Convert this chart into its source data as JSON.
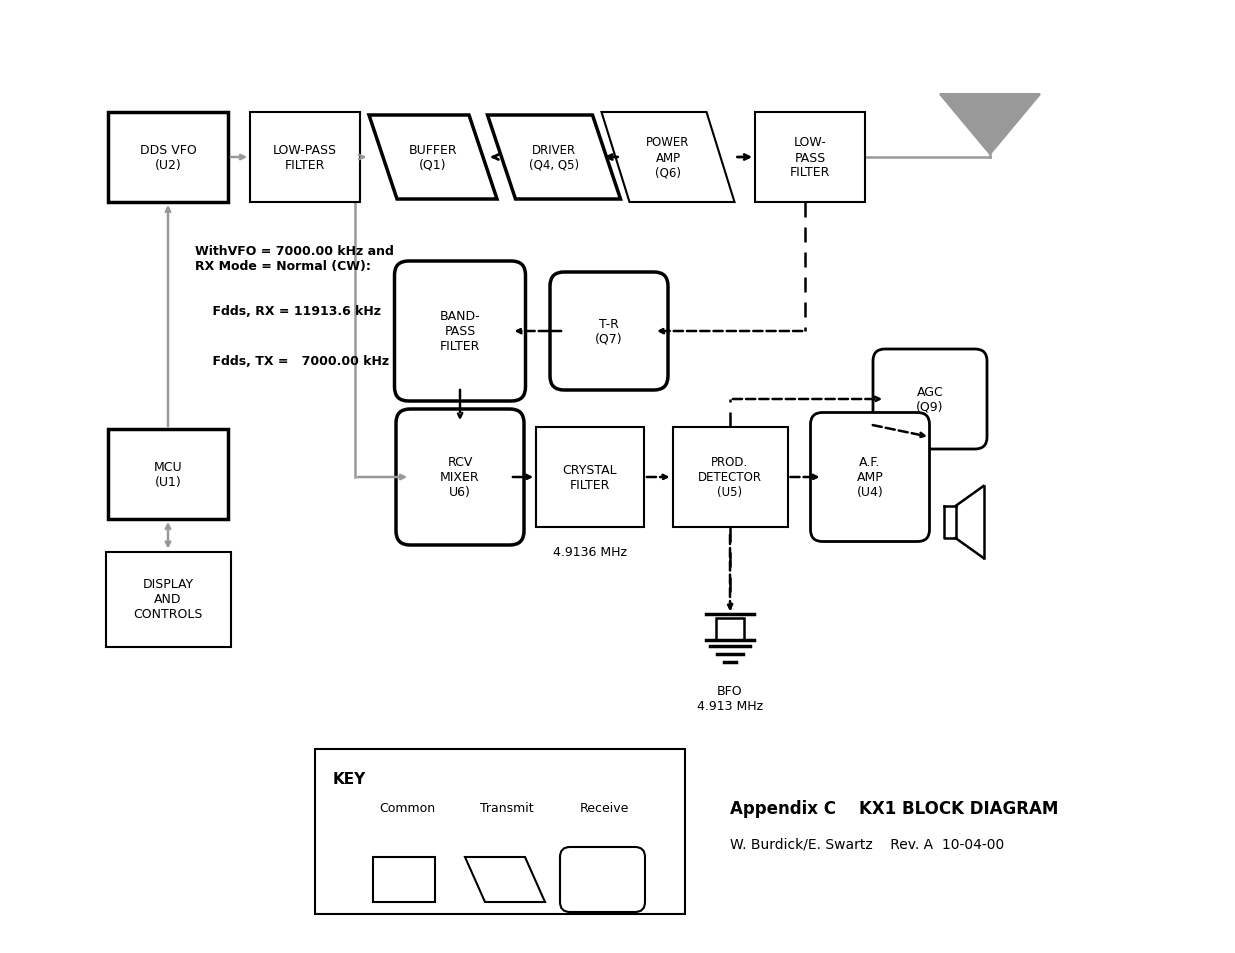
{
  "bg_color": "#ffffff",
  "title": "Appendix C    KX1 BLOCK DIAGRAM",
  "subtitle": "W. Burdick/E. Swartz    Rev. A  10-04-00",
  "freq_label": "4.9136 MHz",
  "bfo_label": "BFO\n4.913 MHz",
  "annotation_line1": "WithVFO = 7000.00 kHz and",
  "annotation_line2": "RX Mode = Normal (CW):",
  "annotation_line3": "    Fdds, RX = 11913.6 kHz",
  "annotation_line4": "    Fdds, TX =   7000.00 kHz",
  "gray": "#999999",
  "black": "#000000",
  "white": "#ffffff"
}
